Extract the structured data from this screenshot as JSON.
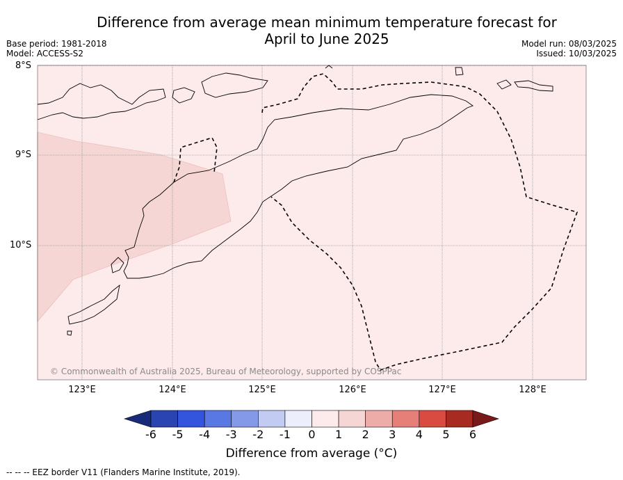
{
  "header": {
    "title_line1": "Difference from average mean minimum temperature forecast for",
    "title_line2": "April to June 2025",
    "base_period": "Base period: 1981-2018",
    "model": "Model: ACCESS-S2",
    "model_run": "Model run: 08/03/2025",
    "issued": "Issued: 10/03/2025"
  },
  "map": {
    "lat_labels": [
      "8°S",
      "9°S",
      "10°S"
    ],
    "lon_labels": [
      "123°E",
      "124°E",
      "125°E",
      "126°E",
      "127°E",
      "128°E"
    ],
    "background_color": "#fcebea",
    "anomaly_color": "#f6d6d4",
    "copyright": "© Commonwealth of Australia 2025, Bureau of Meteorology, supported by COSPPac"
  },
  "colorbar": {
    "ticks": [
      "-6",
      "-5",
      "-4",
      "-3",
      "-2",
      "-1",
      "0",
      "1",
      "2",
      "3",
      "4",
      "5",
      "6"
    ],
    "colors": [
      "#1a2a7a",
      "#2a44b0",
      "#3355dd",
      "#5a78e2",
      "#8499e8",
      "#c2cbf2",
      "#eceffb",
      "#fcebea",
      "#f6d6d4",
      "#eeaca8",
      "#e67f78",
      "#d94a40",
      "#a82b22",
      "#7a1a18"
    ],
    "title": "Difference from average (°C)"
  },
  "footer": {
    "legend": "--  --  -- EEZ border V11 (Flanders Marine Institute, 2019)."
  }
}
